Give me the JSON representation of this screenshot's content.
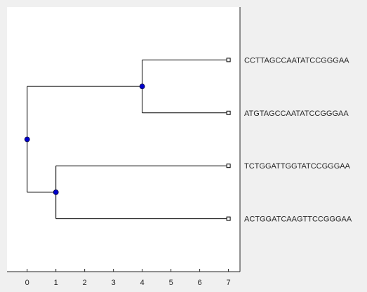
{
  "chart_data": {
    "type": "dendrogram",
    "title": "",
    "xlabel": "",
    "ylabel": "",
    "xlim": [
      -0.7,
      7.4
    ],
    "ylim": [
      0,
      5
    ],
    "grid": false,
    "x_ticks": [
      "0",
      "1",
      "2",
      "3",
      "4",
      "5",
      "6",
      "7"
    ],
    "leaves": [
      {
        "label": "CCTTAGCCAATATCCGGGAA",
        "x": 7,
        "y": 4
      },
      {
        "label": "ATGTAGCCAATATCCGGGAA",
        "x": 7,
        "y": 3
      },
      {
        "label": "TCTGGATTGGTATCCGGGAA",
        "x": 7,
        "y": 2
      },
      {
        "label": "ACTGGATCAAGTTCCGGGAA",
        "x": 7,
        "y": 1
      }
    ],
    "internal_nodes": [
      {
        "id": "n_top",
        "x": 4,
        "y": 3.5,
        "children": [
          "leaf0",
          "leaf1"
        ]
      },
      {
        "id": "n_bottom",
        "x": 1,
        "y": 1.5,
        "children": [
          "leaf2",
          "leaf3"
        ]
      },
      {
        "id": "root",
        "x": 0,
        "y": 2.5,
        "children": [
          "n_top",
          "n_bottom"
        ]
      }
    ],
    "colors": {
      "branch": "#000000",
      "node_fill": "#0000cc",
      "node_stroke": "#00003a",
      "leaf_marker": "#ffffff",
      "plot_bg": "#ffffff",
      "figure_bg": "#f0f0f0"
    }
  }
}
